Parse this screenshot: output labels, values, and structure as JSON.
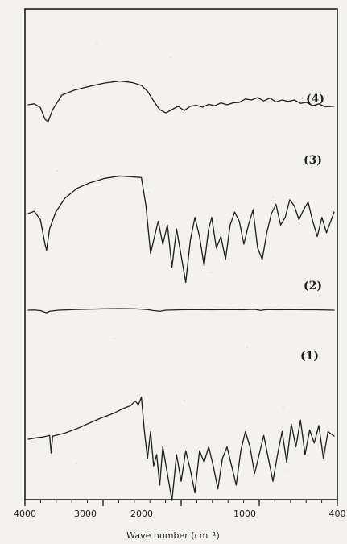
{
  "chart_data": {
    "type": "line",
    "title": "",
    "xlabel": "Wave number (cm⁻¹)",
    "ylabel": "",
    "x_ticks": [
      "4000",
      "3000",
      "2000",
      "1000",
      "400"
    ],
    "series_labels": [
      "(4)",
      "(3)",
      "(2)",
      "(1)"
    ],
    "series": [
      {
        "name": "(4)",
        "points": [
          [
            0.0,
            0.0
          ],
          [
            0.02,
            0.02
          ],
          [
            0.04,
            -0.06
          ],
          [
            0.055,
            -0.3
          ],
          [
            0.065,
            -0.35
          ],
          [
            0.08,
            -0.1
          ],
          [
            0.11,
            0.2
          ],
          [
            0.15,
            0.3
          ],
          [
            0.2,
            0.38
          ],
          [
            0.25,
            0.45
          ],
          [
            0.3,
            0.49
          ],
          [
            0.34,
            0.46
          ],
          [
            0.37,
            0.4
          ],
          [
            0.39,
            0.28
          ],
          [
            0.41,
            0.08
          ],
          [
            0.43,
            -0.1
          ],
          [
            0.45,
            -0.17
          ],
          [
            0.47,
            -0.1
          ],
          [
            0.49,
            -0.03
          ],
          [
            0.51,
            -0.12
          ],
          [
            0.53,
            -0.03
          ],
          [
            0.55,
            -0.01
          ],
          [
            0.57,
            -0.05
          ],
          [
            0.59,
            0.01
          ],
          [
            0.61,
            -0.02
          ],
          [
            0.63,
            0.04
          ],
          [
            0.65,
            0.0
          ],
          [
            0.67,
            0.04
          ],
          [
            0.69,
            0.05
          ],
          [
            0.71,
            0.12
          ],
          [
            0.73,
            0.1
          ],
          [
            0.75,
            0.15
          ],
          [
            0.77,
            0.08
          ],
          [
            0.79,
            0.14
          ],
          [
            0.81,
            0.06
          ],
          [
            0.83,
            0.1
          ],
          [
            0.85,
            0.07
          ],
          [
            0.87,
            0.1
          ],
          [
            0.89,
            0.03
          ],
          [
            0.91,
            0.05
          ],
          [
            0.93,
            -0.02
          ],
          [
            0.95,
            0.02
          ],
          [
            0.97,
            -0.04
          ],
          [
            1.0,
            -0.03
          ]
        ]
      },
      {
        "name": "(3)",
        "points": [
          [
            0.0,
            0.0
          ],
          [
            0.02,
            0.03
          ],
          [
            0.04,
            -0.08
          ],
          [
            0.055,
            -0.4
          ],
          [
            0.06,
            -0.48
          ],
          [
            0.07,
            -0.2
          ],
          [
            0.09,
            0.02
          ],
          [
            0.12,
            0.2
          ],
          [
            0.16,
            0.33
          ],
          [
            0.2,
            0.4
          ],
          [
            0.25,
            0.46
          ],
          [
            0.3,
            0.49
          ],
          [
            0.34,
            0.48
          ],
          [
            0.37,
            0.47
          ],
          [
            0.385,
            0.1
          ],
          [
            0.4,
            -0.52
          ],
          [
            0.41,
            -0.35
          ],
          [
            0.425,
            -0.1
          ],
          [
            0.44,
            -0.4
          ],
          [
            0.455,
            -0.15
          ],
          [
            0.47,
            -0.7
          ],
          [
            0.485,
            -0.2
          ],
          [
            0.5,
            -0.55
          ],
          [
            0.515,
            -0.9
          ],
          [
            0.53,
            -0.35
          ],
          [
            0.545,
            -0.05
          ],
          [
            0.56,
            -0.3
          ],
          [
            0.575,
            -0.68
          ],
          [
            0.59,
            -0.2
          ],
          [
            0.6,
            -0.05
          ],
          [
            0.615,
            -0.45
          ],
          [
            0.63,
            -0.3
          ],
          [
            0.645,
            -0.6
          ],
          [
            0.66,
            -0.15
          ],
          [
            0.675,
            0.02
          ],
          [
            0.69,
            -0.1
          ],
          [
            0.705,
            -0.4
          ],
          [
            0.72,
            -0.15
          ],
          [
            0.735,
            0.05
          ],
          [
            0.75,
            -0.45
          ],
          [
            0.765,
            -0.6
          ],
          [
            0.78,
            -0.25
          ],
          [
            0.795,
            0.0
          ],
          [
            0.81,
            0.12
          ],
          [
            0.825,
            -0.15
          ],
          [
            0.84,
            -0.05
          ],
          [
            0.855,
            0.18
          ],
          [
            0.87,
            0.1
          ],
          [
            0.885,
            -0.08
          ],
          [
            0.9,
            0.05
          ],
          [
            0.915,
            0.15
          ],
          [
            0.93,
            -0.1
          ],
          [
            0.945,
            -0.3
          ],
          [
            0.96,
            -0.05
          ],
          [
            0.975,
            -0.25
          ],
          [
            1.0,
            0.02
          ]
        ]
      },
      {
        "name": "(2)",
        "points": [
          [
            0.0,
            0.0
          ],
          [
            0.02,
            0.01
          ],
          [
            0.04,
            -0.02
          ],
          [
            0.055,
            -0.1
          ],
          [
            0.06,
            -0.12
          ],
          [
            0.07,
            -0.05
          ],
          [
            0.1,
            0.0
          ],
          [
            0.15,
            0.03
          ],
          [
            0.2,
            0.05
          ],
          [
            0.25,
            0.07
          ],
          [
            0.3,
            0.08
          ],
          [
            0.35,
            0.07
          ],
          [
            0.39,
            0.03
          ],
          [
            0.41,
            -0.02
          ],
          [
            0.43,
            -0.05
          ],
          [
            0.45,
            0.0
          ],
          [
            0.5,
            0.02
          ],
          [
            0.55,
            0.03
          ],
          [
            0.6,
            0.02
          ],
          [
            0.65,
            0.03
          ],
          [
            0.7,
            0.02
          ],
          [
            0.74,
            0.04
          ],
          [
            0.76,
            -0.01
          ],
          [
            0.78,
            0.03
          ],
          [
            0.82,
            0.02
          ],
          [
            0.86,
            0.03
          ],
          [
            0.9,
            0.02
          ],
          [
            0.94,
            0.02
          ],
          [
            0.97,
            0.01
          ],
          [
            1.0,
            0.0
          ]
        ]
      },
      {
        "name": "(1)",
        "points": [
          [
            0.0,
            0.0
          ],
          [
            0.03,
            0.02
          ],
          [
            0.05,
            0.03
          ],
          [
            0.07,
            0.05
          ],
          [
            0.075,
            -0.18
          ],
          [
            0.08,
            0.04
          ],
          [
            0.12,
            0.08
          ],
          [
            0.16,
            0.14
          ],
          [
            0.2,
            0.21
          ],
          [
            0.24,
            0.28
          ],
          [
            0.28,
            0.34
          ],
          [
            0.31,
            0.4
          ],
          [
            0.335,
            0.44
          ],
          [
            0.35,
            0.5
          ],
          [
            0.36,
            0.45
          ],
          [
            0.37,
            0.55
          ],
          [
            0.38,
            0.1
          ],
          [
            0.39,
            -0.25
          ],
          [
            0.4,
            0.1
          ],
          [
            0.41,
            -0.35
          ],
          [
            0.42,
            -0.2
          ],
          [
            0.43,
            -0.6
          ],
          [
            0.44,
            -0.1
          ],
          [
            0.455,
            -0.45
          ],
          [
            0.47,
            -0.8
          ],
          [
            0.485,
            -0.2
          ],
          [
            0.5,
            -0.55
          ],
          [
            0.515,
            -0.15
          ],
          [
            0.53,
            -0.4
          ],
          [
            0.545,
            -0.7
          ],
          [
            0.56,
            -0.15
          ],
          [
            0.575,
            -0.3
          ],
          [
            0.59,
            -0.1
          ],
          [
            0.605,
            -0.35
          ],
          [
            0.62,
            -0.65
          ],
          [
            0.635,
            -0.25
          ],
          [
            0.65,
            -0.1
          ],
          [
            0.665,
            -0.35
          ],
          [
            0.68,
            -0.6
          ],
          [
            0.695,
            -0.15
          ],
          [
            0.71,
            0.1
          ],
          [
            0.725,
            -0.1
          ],
          [
            0.74,
            -0.45
          ],
          [
            0.755,
            -0.2
          ],
          [
            0.77,
            0.05
          ],
          [
            0.785,
            -0.25
          ],
          [
            0.8,
            -0.55
          ],
          [
            0.815,
            -0.2
          ],
          [
            0.83,
            0.1
          ],
          [
            0.845,
            -0.3
          ],
          [
            0.86,
            0.2
          ],
          [
            0.875,
            -0.1
          ],
          [
            0.89,
            0.25
          ],
          [
            0.905,
            -0.2
          ],
          [
            0.92,
            0.12
          ],
          [
            0.935,
            -0.05
          ],
          [
            0.95,
            0.18
          ],
          [
            0.965,
            -0.25
          ],
          [
            0.98,
            0.1
          ],
          [
            1.0,
            0.04
          ]
        ]
      }
    ],
    "grid": false,
    "legend": "inline labels"
  }
}
